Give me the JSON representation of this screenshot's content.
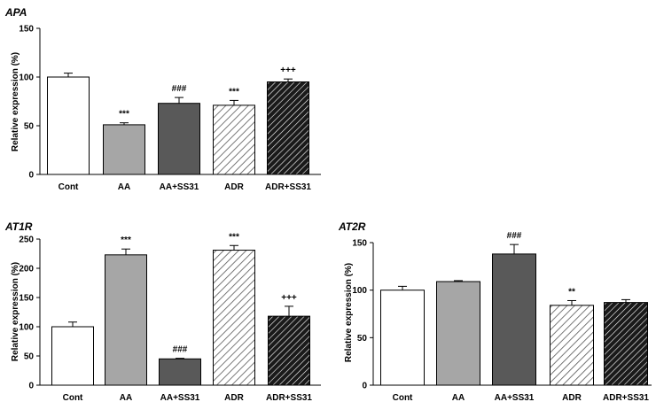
{
  "chart_data": [
    {
      "type": "bar",
      "title": "APA",
      "ylabel": "Relative expression (%)",
      "ylim": [
        0,
        150
      ],
      "yticks": [
        0,
        50,
        100,
        150
      ],
      "categories": [
        "Cont",
        "AA",
        "AA+SS31",
        "ADR",
        "ADR+SS31"
      ],
      "values": [
        100,
        51,
        73,
        71,
        95
      ],
      "errors": [
        4,
        2,
        6,
        5,
        3
      ],
      "annotations": [
        "",
        "***",
        "###",
        "***",
        "+++"
      ],
      "fills": [
        "white",
        "light-gray",
        "dark-gray",
        "light-hatch",
        "dark-hatch"
      ]
    },
    {
      "type": "bar",
      "title": "AT1R",
      "ylabel": "Relative expression (%)",
      "ylim": [
        0,
        250
      ],
      "yticks": [
        0,
        50,
        100,
        150,
        200,
        250
      ],
      "categories": [
        "Cont",
        "AA",
        "AA+SS31",
        "ADR",
        "ADR+SS31"
      ],
      "values": [
        100,
        223,
        45,
        231,
        118
      ],
      "errors": [
        8,
        10,
        1,
        8,
        17
      ],
      "annotations": [
        "",
        "***",
        "###",
        "***",
        "+++"
      ],
      "fills": [
        "white",
        "light-gray",
        "dark-gray",
        "light-hatch",
        "dark-hatch"
      ]
    },
    {
      "type": "bar",
      "title": "AT2R",
      "ylabel": "Relative expression (%)",
      "ylim": [
        0,
        150
      ],
      "yticks": [
        0,
        50,
        100,
        150
      ],
      "categories": [
        "Cont",
        "AA",
        "AA+SS31",
        "ADR",
        "ADR+SS31"
      ],
      "values": [
        100,
        109,
        138,
        84,
        87
      ],
      "errors": [
        4,
        1,
        10,
        5,
        3
      ],
      "annotations": [
        "",
        "",
        "###",
        "**",
        ""
      ],
      "fills": [
        "white",
        "light-gray",
        "dark-gray",
        "light-hatch",
        "dark-hatch"
      ]
    }
  ],
  "colors": {
    "white": "#ffffff",
    "light_gray": "#a6a6a6",
    "dark_gray": "#595959",
    "hatch_line": "#000000",
    "dark_hatch_bg": "#1a1a1a",
    "dark_hatch_line": "#ffffff"
  }
}
